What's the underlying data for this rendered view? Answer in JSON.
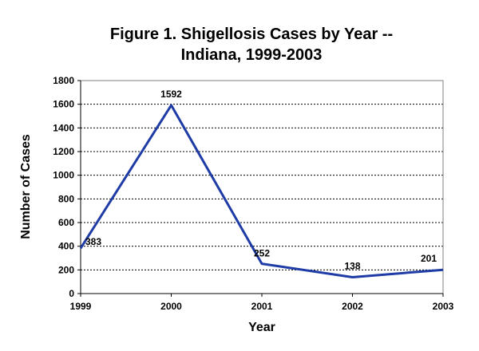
{
  "chart_data": {
    "type": "line",
    "title_lines": [
      "Figure 1.  Shigellosis Cases by Year --",
      "Indiana, 1999-2003"
    ],
    "xlabel": "Year",
    "ylabel": "Number of Cases",
    "categories": [
      "1999",
      "2000",
      "2001",
      "2002",
      "2003"
    ],
    "series": [
      {
        "name": "Shigellosis Cases",
        "values": [
          383,
          1592,
          252,
          138,
          201
        ],
        "color": "#1F3BA6"
      }
    ],
    "data_labels": [
      "383",
      "1592",
      "252",
      "138",
      "201"
    ],
    "ylim": [
      0,
      1800
    ],
    "yticks": [
      0,
      200,
      400,
      600,
      800,
      1000,
      1200,
      1400,
      1600,
      1800
    ],
    "ytick_labels": [
      "0",
      "200",
      "400",
      "600",
      "800",
      "1000",
      "1200",
      "1400",
      "1600",
      "1800"
    ],
    "grid": true,
    "legend": "none"
  }
}
